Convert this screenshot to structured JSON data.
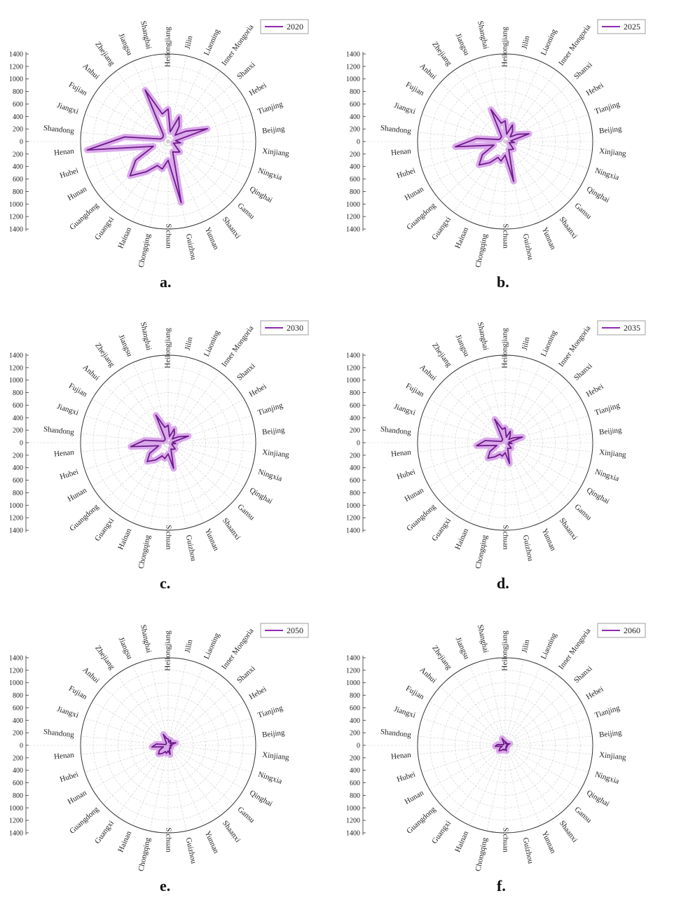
{
  "chart_data": [
    {
      "type": "radar",
      "panel_label": "a.",
      "categories": [
        "Heilongjiang",
        "Jilin",
        "Liaoning",
        "Inner Mongoria",
        "Shanxi",
        "Hebei",
        "Tianjing",
        "Beijing",
        "Xinjiang",
        "Ningxia",
        "Qinghai",
        "Gansu",
        "Shaanxi",
        "Yunnan",
        "Guizhou",
        "Sichuan",
        "Chongqing",
        "Hainan",
        "Guangxi",
        "Guangdong",
        "Hunan",
        "Hubei",
        "Henan",
        "Shandong",
        "Jiangxi",
        "Fujian",
        "Anhui",
        "Zhejiang",
        "Jiangsu",
        "Shanghai"
      ],
      "y_ticks": [
        1400,
        1200,
        1000,
        800,
        600,
        400,
        200,
        0,
        200,
        400,
        600,
        800,
        1000,
        1200,
        1400
      ],
      "rlim": [
        0,
        1400
      ],
      "series": [
        {
          "name": "2020",
          "values": [
            520,
            160,
            430,
            300,
            150,
            330,
            660,
            120,
            200,
            90,
            130,
            250,
            210,
            180,
            1000,
            300,
            450,
            420,
            600,
            820,
            600,
            250,
            1300,
            700,
            130,
            110,
            110,
            130,
            900,
            450
          ]
        }
      ],
      "legend_position": "top-right"
    },
    {
      "type": "radar",
      "panel_label": "b.",
      "categories": [
        "Heilongjiang",
        "Jilin",
        "Liaoning",
        "Inner Mongoria",
        "Shanxi",
        "Hebei",
        "Tianjing",
        "Beijing",
        "Xinjiang",
        "Ningxia",
        "Qinghai",
        "Gansu",
        "Shaanxi",
        "Yunnan",
        "Guizhou",
        "Sichuan",
        "Chongqing",
        "Hainan",
        "Guangxi",
        "Guangdong",
        "Hunan",
        "Hubei",
        "Henan",
        "Shandong",
        "Jiangxi",
        "Fujian",
        "Anhui",
        "Zhejiang",
        "Jiangsu",
        "Shanghai"
      ],
      "y_ticks": [
        1400,
        1200,
        1000,
        800,
        600,
        400,
        200,
        0,
        200,
        400,
        600,
        800,
        1000,
        1200,
        1400
      ],
      "rlim": [
        0,
        1400
      ],
      "series": [
        {
          "name": "2025",
          "values": [
            330,
            120,
            290,
            200,
            110,
            230,
            400,
            90,
            150,
            70,
            100,
            180,
            160,
            140,
            650,
            220,
            320,
            280,
            420,
            560,
            420,
            190,
            800,
            460,
            100,
            90,
            90,
            100,
            560,
            300
          ]
        }
      ],
      "legend_position": "top-right"
    },
    {
      "type": "radar",
      "panel_label": "c.",
      "categories": [
        "Heilongjiang",
        "Jilin",
        "Liaoning",
        "Inner Mongoria",
        "Shanxi",
        "Hebei",
        "Tianjing",
        "Beijing",
        "Xinjiang",
        "Ningxia",
        "Qinghai",
        "Gansu",
        "Shaanxi",
        "Yunnan",
        "Guizhou",
        "Sichuan",
        "Chongqing",
        "Hainan",
        "Guangxi",
        "Guangdong",
        "Hunan",
        "Hubei",
        "Henan",
        "Shandong",
        "Jiangxi",
        "Fujian",
        "Anhui",
        "Zhejiang",
        "Jiangsu",
        "Shanghai"
      ],
      "y_ticks": [
        1400,
        1200,
        1000,
        800,
        600,
        400,
        200,
        0,
        200,
        400,
        600,
        800,
        1000,
        1200,
        1400
      ],
      "rlim": [
        0,
        1400
      ],
      "series": [
        {
          "name": "2030",
          "values": [
            280,
            100,
            240,
            170,
            90,
            190,
            340,
            70,
            120,
            60,
            80,
            150,
            130,
            110,
            420,
            180,
            260,
            230,
            340,
            450,
            340,
            160,
            600,
            380,
            80,
            70,
            70,
            80,
            480,
            250
          ]
        }
      ],
      "legend_position": "top-right"
    },
    {
      "type": "radar",
      "panel_label": "d.",
      "categories": [
        "Heilongjiang",
        "Jilin",
        "Liaoning",
        "Inner Mongoria",
        "Shanxi",
        "Hebei",
        "Tianjing",
        "Beijing",
        "Xinjiang",
        "Ningxia",
        "Qinghai",
        "Gansu",
        "Shaanxi",
        "Yunnan",
        "Guizhou",
        "Sichuan",
        "Chongqing",
        "Hainan",
        "Guangxi",
        "Guangdong",
        "Hunan",
        "Hubei",
        "Henan",
        "Shandong",
        "Jiangxi",
        "Fujian",
        "Anhui",
        "Zhejiang",
        "Jiangsu",
        "Shanghai"
      ],
      "y_ticks": [
        1400,
        1200,
        1000,
        800,
        600,
        400,
        200,
        0,
        200,
        400,
        600,
        800,
        1000,
        1200,
        1400
      ],
      "rlim": [
        0,
        1400
      ],
      "series": [
        {
          "name": "2035",
          "values": [
            240,
            90,
            200,
            140,
            80,
            160,
            290,
            60,
            110,
            50,
            70,
            130,
            110,
            100,
            340,
            160,
            220,
            200,
            280,
            370,
            280,
            140,
            460,
            320,
            70,
            60,
            60,
            70,
            410,
            220
          ]
        }
      ],
      "legend_position": "top-right"
    },
    {
      "type": "radar",
      "panel_label": "e.",
      "categories": [
        "Heilongjiang",
        "Jilin",
        "Liaoning",
        "Inner Mongoria",
        "Shanxi",
        "Hebei",
        "Tianjing",
        "Beijing",
        "Xinjiang",
        "Ningxia",
        "Qinghai",
        "Gansu",
        "Shaanxi",
        "Yunnan",
        "Guizhou",
        "Sichuan",
        "Chongqing",
        "Hainan",
        "Guangxi",
        "Guangdong",
        "Hunan",
        "Hubei",
        "Henan",
        "Shandong",
        "Jiangxi",
        "Fujian",
        "Anhui",
        "Zhejiang",
        "Jiangsu",
        "Shanghai"
      ],
      "y_ticks": [
        1400,
        1200,
        1000,
        800,
        600,
        400,
        200,
        0,
        200,
        400,
        600,
        800,
        1000,
        1200,
        1400
      ],
      "rlim": [
        0,
        1400
      ],
      "series": [
        {
          "name": "2050",
          "values": [
            100,
            50,
            90,
            70,
            40,
            80,
            130,
            40,
            60,
            30,
            40,
            60,
            60,
            50,
            150,
            90,
            130,
            110,
            160,
            210,
            160,
            80,
            260,
            190,
            40,
            40,
            40,
            50,
            190,
            110
          ]
        }
      ],
      "legend_position": "top-right"
    },
    {
      "type": "radar",
      "panel_label": "f.",
      "categories": [
        "Heilongjiang",
        "Jilin",
        "Liaoning",
        "Inner Mongoria",
        "Shanxi",
        "Hebei",
        "Tianjing",
        "Beijing",
        "Xinjiang",
        "Ningxia",
        "Qinghai",
        "Gansu",
        "Shaanxi",
        "Yunnan",
        "Guizhou",
        "Sichuan",
        "Chongqing",
        "Hainan",
        "Guangxi",
        "Guangdong",
        "Hunan",
        "Hubei",
        "Henan",
        "Shandong",
        "Jiangxi",
        "Fujian",
        "Anhui",
        "Zhejiang",
        "Jiangsu",
        "Shanghai"
      ],
      "y_ticks": [
        1400,
        1200,
        1000,
        800,
        600,
        400,
        200,
        0,
        200,
        400,
        600,
        800,
        1000,
        1200,
        1400
      ],
      "rlim": [
        0,
        1400
      ],
      "series": [
        {
          "name": "2060",
          "values": [
            60,
            30,
            50,
            40,
            30,
            50,
            80,
            30,
            40,
            20,
            30,
            40,
            40,
            30,
            90,
            60,
            80,
            70,
            100,
            130,
            100,
            50,
            160,
            120,
            30,
            30,
            30,
            30,
            120,
            70
          ]
        }
      ],
      "legend_position": "top-right"
    }
  ]
}
